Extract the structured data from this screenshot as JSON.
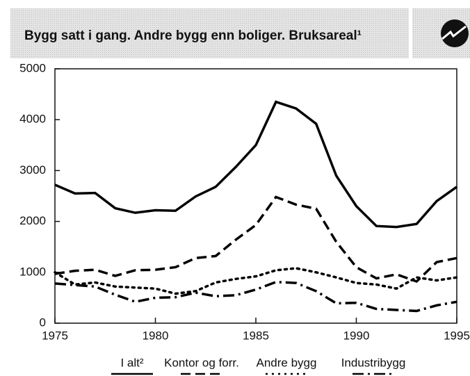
{
  "chart_data": {
    "type": "line",
    "title": "Bygg satt i gang. Andre bygg enn boliger. Bruksareal¹",
    "x": [
      1975,
      1976,
      1977,
      1978,
      1979,
      1980,
      1981,
      1982,
      1983,
      1984,
      1985,
      1986,
      1987,
      1988,
      1989,
      1990,
      1991,
      1992,
      1993,
      1994,
      1995
    ],
    "series": [
      {
        "name": "I alt²",
        "color": "#000000",
        "style": "solid",
        "values": [
          2720,
          2550,
          2560,
          2260,
          2170,
          2220,
          2210,
          2490,
          2680,
          3070,
          3500,
          4350,
          4220,
          3920,
          2900,
          2300,
          1910,
          1890,
          1950,
          2400,
          2680
        ]
      },
      {
        "name": "Kontor og forr.",
        "color": "#000000",
        "style": "dashed",
        "values": [
          970,
          1030,
          1050,
          930,
          1040,
          1050,
          1100,
          1280,
          1320,
          1640,
          1930,
          2480,
          2330,
          2250,
          1600,
          1100,
          880,
          960,
          820,
          1200,
          1280
        ]
      },
      {
        "name": "Andre bygg",
        "color": "#000000",
        "style": "dotted",
        "values": [
          1000,
          760,
          800,
          720,
          700,
          680,
          580,
          630,
          800,
          870,
          920,
          1040,
          1080,
          1000,
          900,
          790,
          760,
          680,
          900,
          840,
          900
        ]
      },
      {
        "name": "Industribygg",
        "color": "#000000",
        "style": "dashdot",
        "values": [
          780,
          750,
          720,
          560,
          420,
          500,
          510,
          600,
          530,
          550,
          660,
          810,
          790,
          630,
          390,
          400,
          280,
          260,
          240,
          350,
          420
        ]
      }
    ],
    "xlim": [
      1975,
      1995
    ],
    "xticks": [
      1975,
      1980,
      1985,
      1990,
      1995
    ],
    "ylim": [
      0,
      5000
    ],
    "yticks": [
      0,
      1000,
      2000,
      3000,
      4000,
      5000
    ]
  }
}
